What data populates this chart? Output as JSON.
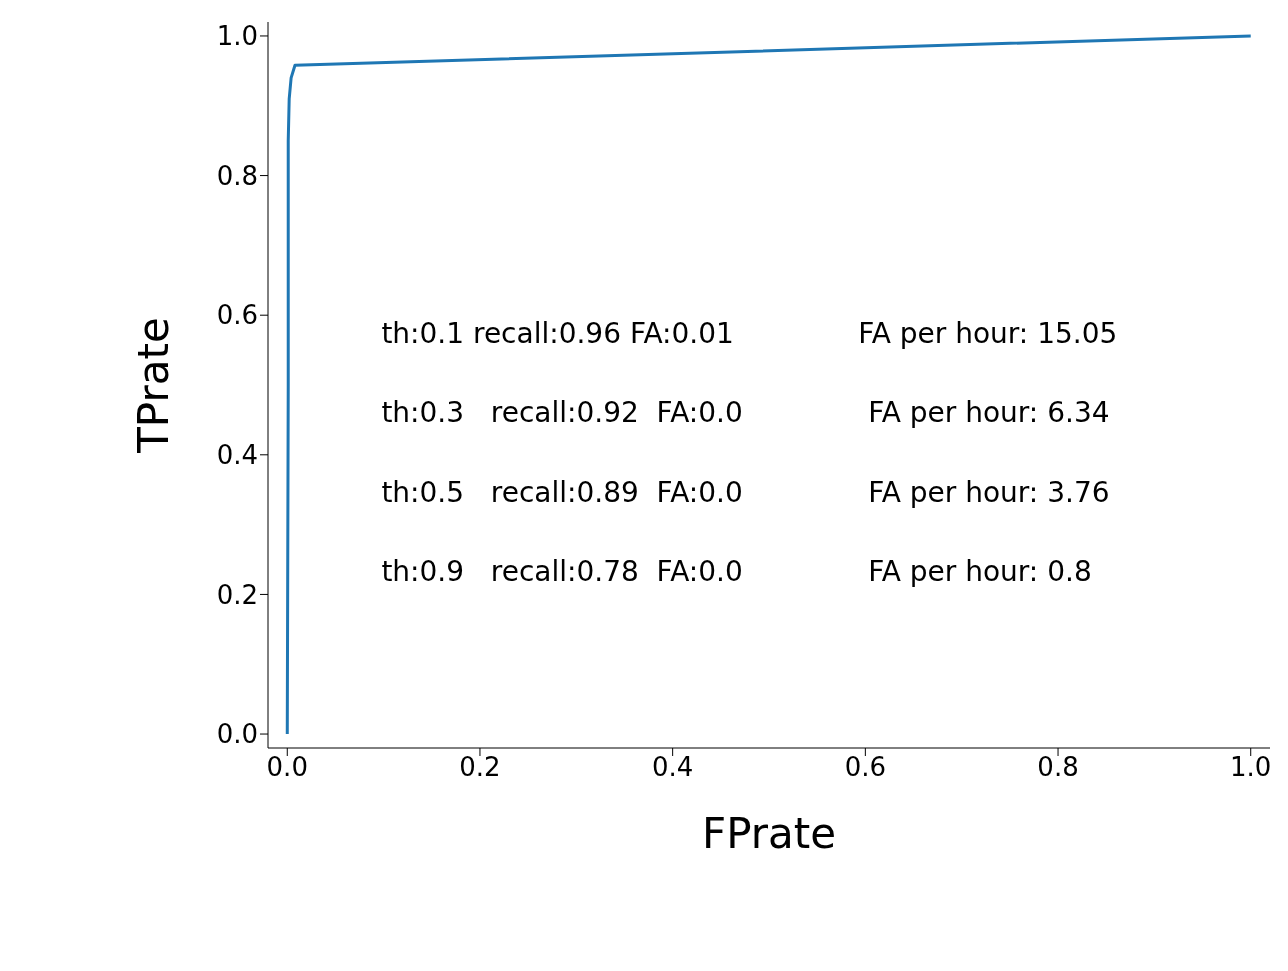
{
  "chart_data": {
    "type": "line",
    "xlabel": "FPrate",
    "ylabel": "TPrate",
    "x": [
      0,
      0.001,
      0.001,
      0.002,
      0.004,
      0.008,
      1
    ],
    "series": [
      {
        "color": "#1f77b4",
        "values": [
          0,
          0.5,
          0.85,
          0.91,
          0.94,
          0.958,
          1
        ]
      }
    ],
    "xlim": [
      -0.02,
      1.02
    ],
    "ylim": [
      -0.02,
      1.02
    ],
    "xticks": [
      {
        "value": 0,
        "label": "0.0"
      },
      {
        "value": 0.2,
        "label": "0.2"
      },
      {
        "value": 0.4,
        "label": "0.4"
      },
      {
        "value": 0.6,
        "label": "0.6"
      },
      {
        "value": 0.8,
        "label": "0.8"
      },
      {
        "value": 1,
        "label": "1.0"
      }
    ],
    "yticks": [
      {
        "value": 0,
        "label": "0.0"
      },
      {
        "value": 0.2,
        "label": "0.2"
      },
      {
        "value": 0.4,
        "label": "0.4"
      },
      {
        "value": 0.6,
        "label": "0.6"
      },
      {
        "value": 0.8,
        "label": "0.8"
      },
      {
        "value": 1,
        "label": "1.0"
      }
    ],
    "annotations": [
      "th:0.1 recall:0.96 FA:0.01",
      "FA per hour: 15.05",
      "th:0.3   recall:0.92  FA:0.0",
      "FA per hour: 6.34",
      "th:0.5   recall:0.89  FA:0.0",
      "FA per hour: 3.76",
      "th:0.9   recall:0.78  FA:0.0",
      "FA per hour: 0.8"
    ],
    "grid": false,
    "legend": false,
    "marker": "none",
    "line_style": "solid"
  }
}
